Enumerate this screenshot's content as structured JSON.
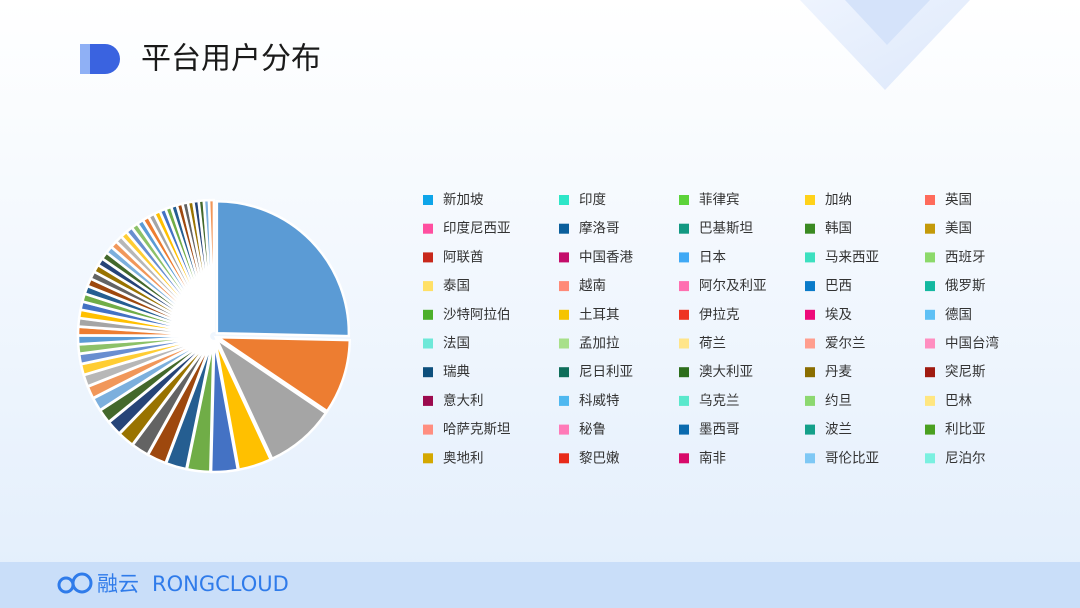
{
  "header": {
    "title": "平台用户分布"
  },
  "chart_data": {
    "type": "pie",
    "categories": [
      "新加坡",
      "印度",
      "菲律宾",
      "加纳",
      "英国",
      "印度尼西亚",
      "摩洛哥",
      "巴基斯坦",
      "韩国",
      "美国",
      "阿联酋",
      "中国香港",
      "日本",
      "马来西亚",
      "西班牙",
      "泰国",
      "越南",
      "阿尔及利亚",
      "巴西",
      "俄罗斯",
      "沙特阿拉伯",
      "土耳其",
      "伊拉克",
      "埃及",
      "德国",
      "法国",
      "孟加拉",
      "荷兰",
      "爱尔兰",
      "中国台湾",
      "瑞典",
      "尼日利亚",
      "澳大利亚",
      "丹麦",
      "突尼斯",
      "意大利",
      "科威特",
      "乌克兰",
      "约旦",
      "巴林",
      "哈萨克斯坦",
      "秘鲁",
      "墨西哥",
      "波兰",
      "利比亚",
      "奥地利",
      "黎巴嫩",
      "南非",
      "哥伦比亚",
      "尼泊尔"
    ],
    "values": [
      25,
      9,
      8.5,
      4,
      3.2,
      2.8,
      2.5,
      2.3,
      2.1,
      2,
      1.8,
      1.7,
      1.6,
      1.5,
      1.4,
      1.3,
      1.2,
      1.1,
      1.05,
      1,
      1,
      0.98,
      0.96,
      0.95,
      0.94,
      0.92,
      0.9,
      0.9,
      0.88,
      0.86,
      0.85,
      0.84,
      0.82,
      0.8,
      0.8,
      0.78,
      0.76,
      0.75,
      0.74,
      0.72,
      0.7,
      0.7,
      0.68,
      0.66,
      0.65,
      0.64,
      0.62,
      0.6,
      0.6,
      0.58
    ],
    "colors": [
      "#5b9bd5",
      "#ed7d31",
      "#a5a5a5",
      "#ffc000",
      "#4472c4",
      "#70ad47",
      "#255e91",
      "#9e480e",
      "#636363",
      "#997300",
      "#264478",
      "#43682b",
      "#7cafdd",
      "#f1975a",
      "#b7b7b7",
      "#ffcd33",
      "#698ed0",
      "#8cc168"
    ],
    "legend_colors": [
      "#0ea5e9",
      "#2ee6c8",
      "#5dd33a",
      "#ffd21a",
      "#ff6b5b",
      "#ff4fa0",
      "#0b5f9c",
      "#129982",
      "#3a8a22",
      "#c49a0a",
      "#c8281b",
      "#c40d6a",
      "#3fa9f5",
      "#3ce0c0",
      "#8cd96a",
      "#ffe066",
      "#ff8a78",
      "#ff6fb0",
      "#0a7bc9",
      "#14b8a0",
      "#4caf2a",
      "#f5c400",
      "#ee3322",
      "#ee0a7a",
      "#5fc0f5",
      "#6ee8d8",
      "#a8e08a",
      "#ffe58a",
      "#ff9e8e",
      "#ff8ec0",
      "#0d4f7c",
      "#0f6e5a",
      "#2d6e1c",
      "#8a6e00",
      "#a01a10",
      "#9c0a4e",
      "#4fb8f0",
      "#5ae8cc",
      "#8cd870",
      "#ffe680",
      "#ff8e80",
      "#ff7ab8",
      "#0a6aae",
      "#14a08a",
      "#4aa020",
      "#d4a800",
      "#e82a1a",
      "#d80a6a",
      "#7ec8f5",
      "#7af0e0"
    ]
  },
  "footer": {
    "brand_cn": "融云",
    "brand_en": "RONGCLOUD"
  }
}
